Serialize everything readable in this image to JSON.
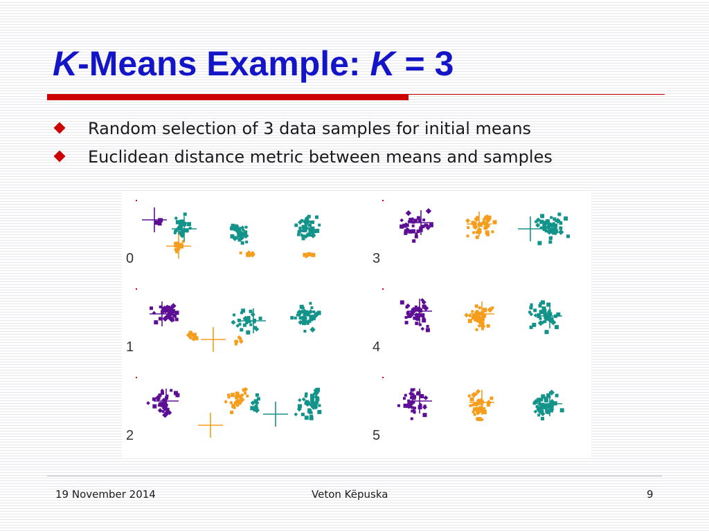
{
  "slide": {
    "title": {
      "k1": "K",
      "middle": "-Means Example: ",
      "k2": "K",
      "tail": " = 3"
    },
    "bullets": [
      "Random selection of 3 data samples for initial means",
      "Euclidean distance metric between means and samples"
    ],
    "figure": {
      "panel_labels": [
        "0",
        "1",
        "2",
        "3",
        "4",
        "5"
      ],
      "colors": {
        "cluster_a": "#5c0f94",
        "cluster_b": "#f59d1c",
        "cluster_c": "#13938a",
        "title": "#1515c8",
        "accent": "#cc0000"
      }
    },
    "footer": {
      "date": "19 November 2014",
      "author": "Veton Këpuska",
      "page": "9"
    }
  }
}
